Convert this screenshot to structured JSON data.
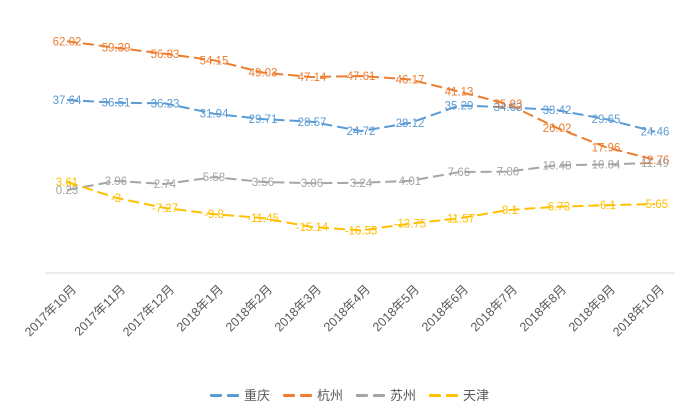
{
  "chart_data": {
    "type": "line",
    "title": "",
    "categories": [
      "2017年10月",
      "2017年11月",
      "2017年12月",
      "2018年1月",
      "2018年2月",
      "2018年3月",
      "2018年4月",
      "2018年5月",
      "2018年6月",
      "2018年7月",
      "2018年8月",
      "2018年9月",
      "2018年10月"
    ],
    "series": [
      {
        "key": "chongqing",
        "name": "重庆",
        "color": "#5B9BD5",
        "values": [
          37.64,
          36.51,
          36.23,
          31.94,
          29.71,
          28.57,
          24.72,
          28.12,
          35.29,
          34.63,
          33.42,
          29.65,
          24.46
        ]
      },
      {
        "key": "hangzhou",
        "name": "杭州",
        "color": "#ED7D31",
        "values": [
          62.02,
          59.39,
          56.83,
          54.15,
          49.03,
          47.14,
          47.61,
          46.17,
          41.13,
          35.93,
          26.02,
          17.96,
          12.76
        ]
      },
      {
        "key": "suzhou",
        "name": "苏州",
        "color": "#A5A5A5",
        "values": [
          0.23,
          3.96,
          2.74,
          5.58,
          3.56,
          3.06,
          3.24,
          4.01,
          7.66,
          7.86,
          10.48,
          10.84,
          11.49
        ]
      },
      {
        "key": "tianjin",
        "name": "天津",
        "color": "#FFC000",
        "values": [
          3.61,
          -3,
          -7.27,
          -9.8,
          -11.45,
          -15.14,
          -16.55,
          -13.75,
          -11.57,
          -8.1,
          -6.73,
          -6.1,
          -5.65
        ]
      }
    ],
    "line_style": "dashed",
    "data_labels": true,
    "grid": false,
    "y_axis_visible": false,
    "ylim_hint": [
      -20,
      65
    ],
    "x_axis_line_color": "#D9D9D9",
    "axis_label_color": "#595959",
    "legend_text_color": "#595959",
    "legend_position": "bottom"
  }
}
